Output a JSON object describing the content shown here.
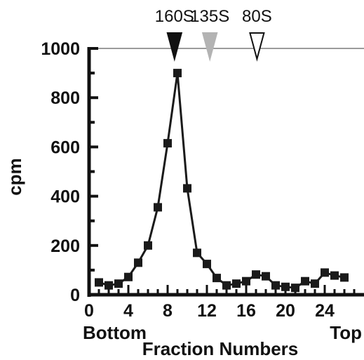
{
  "chart_data": {
    "type": "line",
    "title": "",
    "xlabel": "Fraction Numbers",
    "ylabel": "cpm",
    "xlim": [
      0,
      27
    ],
    "ylim": [
      0,
      1000
    ],
    "x_ticks": [
      0,
      4,
      8,
      12,
      16,
      20,
      24
    ],
    "y_ticks": [
      0,
      200,
      400,
      600,
      800,
      1000
    ],
    "x_end_labels": {
      "left": "Bottom",
      "right": "Top"
    },
    "grid": false,
    "legend": "none",
    "series": [
      {
        "color": "#1a1a1a",
        "marker": "square",
        "x": [
          1,
          2,
          3,
          4,
          5,
          6,
          7,
          8,
          9,
          10,
          11,
          12,
          13,
          14,
          15,
          16,
          17,
          18,
          19,
          20,
          21,
          22,
          23,
          24,
          25,
          26
        ],
        "y": [
          50,
          38,
          45,
          72,
          130,
          200,
          355,
          615,
          900,
          432,
          170,
          125,
          68,
          38,
          45,
          55,
          82,
          75,
          38,
          32,
          28,
          55,
          45,
          90,
          78,
          70
        ]
      }
    ],
    "sedimentation_markers": [
      {
        "label": "160S",
        "x": 8.7,
        "fill": "#111111"
      },
      {
        "label": "135S",
        "x": 12.3,
        "fill": "#b3b3b3"
      },
      {
        "label": "80S",
        "x": 17.1,
        "fill": "#ffffff"
      }
    ]
  }
}
